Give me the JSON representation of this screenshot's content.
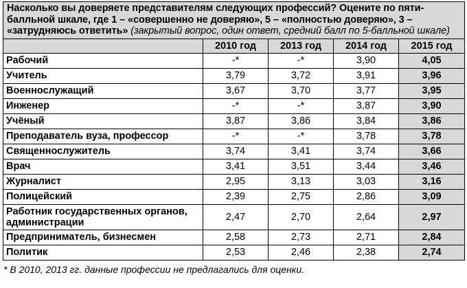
{
  "question_main": "Насколько вы доверяете представителям следующих профессий? Оцените по пяти-балльной шкале, где 1 – «совершенно не доверяю», 5 – «полностью доверяю», 3 – «затрудняюсь ответить»",
  "question_note": "(закрытый вопрос, один ответ, средний балл по 5-балльной шкале)",
  "columns": [
    "2010 год",
    "2013 год",
    "2014 год",
    "2015 год"
  ],
  "rows": [
    {
      "name": "Рабочий",
      "values": [
        "-*",
        "-*",
        "3,90",
        "4,05"
      ]
    },
    {
      "name": "Учитель",
      "values": [
        "3,79",
        "3,72",
        "3,91",
        "3,96"
      ]
    },
    {
      "name": "Военнослужащий",
      "values": [
        "3,67",
        "3,70",
        "3,77",
        "3,95"
      ]
    },
    {
      "name": "Инженер",
      "values": [
        "-*",
        "-*",
        "3,87",
        "3,90"
      ]
    },
    {
      "name": "Учёный",
      "values": [
        "3,87",
        "3,86",
        "3,84",
        "3,86"
      ]
    },
    {
      "name": "Преподаватель вуза, профессор",
      "values": [
        "-*",
        "-*",
        "3,78",
        "3,78"
      ]
    },
    {
      "name": "Священнослужитель",
      "values": [
        "3,74",
        "3,41",
        "3,74",
        "3,66"
      ]
    },
    {
      "name": "Врач",
      "values": [
        "3,41",
        "3,51",
        "3,44",
        "3,46"
      ]
    },
    {
      "name": "Журналист",
      "values": [
        "2,95",
        "3,13",
        "3,03",
        "3,16"
      ]
    },
    {
      "name": "Полицейский",
      "values": [
        "2,39",
        "2,75",
        "2,86",
        "3,09"
      ]
    },
    {
      "name": "Работник государственных органов, администрации",
      "values": [
        "2,47",
        "2,70",
        "2,64",
        "2,97"
      ]
    },
    {
      "name": "Предприниматель, бизнесмен",
      "values": [
        "2,58",
        "2,73",
        "2,71",
        "2,84"
      ]
    },
    {
      "name": "Политик",
      "values": [
        "2,53",
        "2,46",
        "2,38",
        "2,74"
      ]
    }
  ],
  "footnote": "* В 2010, 2013 гг. данные профессии не предлагались для оценки.",
  "colors": {
    "header_bg": "#d8d8d8",
    "border": "#000000",
    "text": "#000000"
  }
}
